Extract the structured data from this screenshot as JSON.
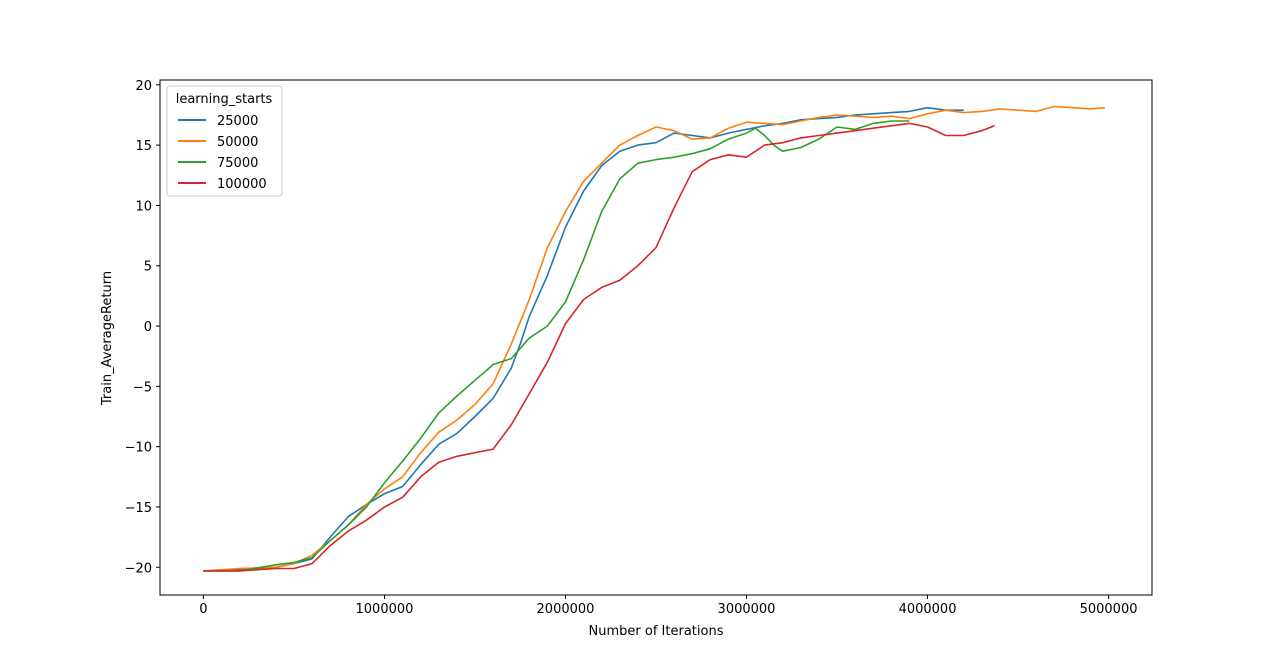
{
  "chart_data": {
    "type": "line",
    "title": "",
    "xlabel": "Number of Iterations",
    "ylabel": "Train_AverageReturn",
    "xlim": [
      -240000,
      5240000
    ],
    "ylim": [
      -22.3,
      20.4
    ],
    "xticks": [
      0,
      1000000,
      2000000,
      3000000,
      4000000,
      5000000
    ],
    "xtick_labels": [
      "0",
      "1000000",
      "2000000",
      "3000000",
      "4000000",
      "5000000"
    ],
    "yticks": [
      -20,
      -15,
      -10,
      -5,
      0,
      5,
      10,
      15,
      20
    ],
    "ytick_labels": [
      "−20",
      "−15",
      "−10",
      "−5",
      "0",
      "5",
      "10",
      "15",
      "20"
    ],
    "grid": false,
    "legend": {
      "title": "learning_starts",
      "position": "top-left"
    },
    "series": [
      {
        "name": "25000",
        "color": "#1f77b4",
        "x": [
          0,
          200000,
          400000,
          500000,
          600000,
          700000,
          800000,
          900000,
          1000000,
          1100000,
          1200000,
          1300000,
          1400000,
          1500000,
          1600000,
          1700000,
          1750000,
          1800000,
          1900000,
          2000000,
          2100000,
          2200000,
          2300000,
          2400000,
          2500000,
          2600000,
          2700000,
          2800000,
          2900000,
          3000000,
          3100000,
          3200000,
          3300000,
          3400000,
          3500000,
          3600000,
          3700000,
          3800000,
          3900000,
          4000000,
          4100000,
          4200000
        ],
        "y": [
          -20.3,
          -20.2,
          -20,
          -19.7,
          -19.3,
          -17.5,
          -15.8,
          -14.8,
          -13.9,
          -13.3,
          -11.5,
          -9.8,
          -8.9,
          -7.5,
          -6,
          -3.5,
          -1.5,
          0.8,
          4.2,
          8.2,
          11.2,
          13.3,
          14.5,
          15,
          15.2,
          16,
          15.8,
          15.6,
          16,
          16.3,
          16.6,
          16.8,
          17.1,
          17.2,
          17.3,
          17.5,
          17.6,
          17.7,
          17.8,
          18.1,
          17.9,
          17.9
        ]
      },
      {
        "name": "50000",
        "color": "#ff7f0e",
        "x": [
          0,
          200000,
          400000,
          500000,
          600000,
          700000,
          800000,
          900000,
          1000000,
          1100000,
          1200000,
          1300000,
          1400000,
          1500000,
          1600000,
          1700000,
          1800000,
          1900000,
          2000000,
          2100000,
          2200000,
          2300000,
          2400000,
          2500000,
          2600000,
          2700000,
          2800000,
          2900000,
          3000000,
          3100000,
          3200000,
          3300000,
          3400000,
          3500000,
          3600000,
          3700000,
          3800000,
          3900000,
          4000000,
          4100000,
          4200000,
          4300000,
          4400000,
          4500000,
          4600000,
          4700000,
          4800000,
          4900000,
          4980000
        ],
        "y": [
          -20.3,
          -20.1,
          -20,
          -19.7,
          -19,
          -17.8,
          -16.5,
          -14.8,
          -13.5,
          -12.5,
          -10.5,
          -8.8,
          -7.8,
          -6.5,
          -4.8,
          -1.5,
          2.2,
          6.5,
          9.5,
          12,
          13.5,
          15,
          15.8,
          16.5,
          16.2,
          15.5,
          15.6,
          16.4,
          16.9,
          16.8,
          16.7,
          17,
          17.3,
          17.5,
          17.4,
          17.3,
          17.4,
          17.2,
          17.6,
          17.9,
          17.7,
          17.8,
          18,
          17.9,
          17.8,
          18.2,
          18.1,
          18,
          18.1
        ]
      },
      {
        "name": "75000",
        "color": "#2ca02c",
        "x": [
          0,
          200000,
          400000,
          500000,
          600000,
          700000,
          800000,
          900000,
          1000000,
          1100000,
          1200000,
          1300000,
          1400000,
          1500000,
          1600000,
          1700000,
          1800000,
          1900000,
          2000000,
          2100000,
          2200000,
          2300000,
          2400000,
          2500000,
          2600000,
          2700000,
          2800000,
          2900000,
          3000000,
          3050000,
          3100000,
          3150000,
          3200000,
          3300000,
          3400000,
          3500000,
          3600000,
          3700000,
          3800000,
          3900000
        ],
        "y": [
          -20.3,
          -20.3,
          -19.8,
          -19.6,
          -19.2,
          -17.8,
          -16.5,
          -15,
          -13,
          -11.2,
          -9.3,
          -7.2,
          -5.8,
          -4.5,
          -3.2,
          -2.7,
          -1,
          0,
          2,
          5.5,
          9.5,
          12.2,
          13.5,
          13.8,
          14,
          14.3,
          14.7,
          15.5,
          16,
          16.4,
          15.8,
          15,
          14.5,
          14.8,
          15.5,
          16.5,
          16.3,
          16.8,
          17,
          17
        ]
      },
      {
        "name": "100000",
        "color": "#d62728",
        "x": [
          0,
          200000,
          400000,
          500000,
          600000,
          700000,
          800000,
          900000,
          1000000,
          1100000,
          1200000,
          1300000,
          1400000,
          1500000,
          1600000,
          1700000,
          1800000,
          1900000,
          2000000,
          2100000,
          2200000,
          2300000,
          2400000,
          2500000,
          2600000,
          2700000,
          2800000,
          2900000,
          3000000,
          3100000,
          3200000,
          3300000,
          3400000,
          3500000,
          3600000,
          3700000,
          3800000,
          3900000,
          4000000,
          4100000,
          4200000,
          4300000,
          4370000
        ],
        "y": [
          -20.3,
          -20.3,
          -20.1,
          -20.1,
          -19.7,
          -18.2,
          -17,
          -16.1,
          -15,
          -14.2,
          -12.5,
          -11.3,
          -10.8,
          -10.5,
          -10.2,
          -8.2,
          -5.6,
          -3,
          0.2,
          2.2,
          3.2,
          3.8,
          5,
          6.5,
          9.8,
          12.8,
          13.8,
          14.2,
          14,
          15,
          15.2,
          15.6,
          15.8,
          16,
          16.2,
          16.4,
          16.6,
          16.8,
          16.5,
          15.8,
          15.8,
          16.2,
          16.6
        ]
      }
    ]
  }
}
